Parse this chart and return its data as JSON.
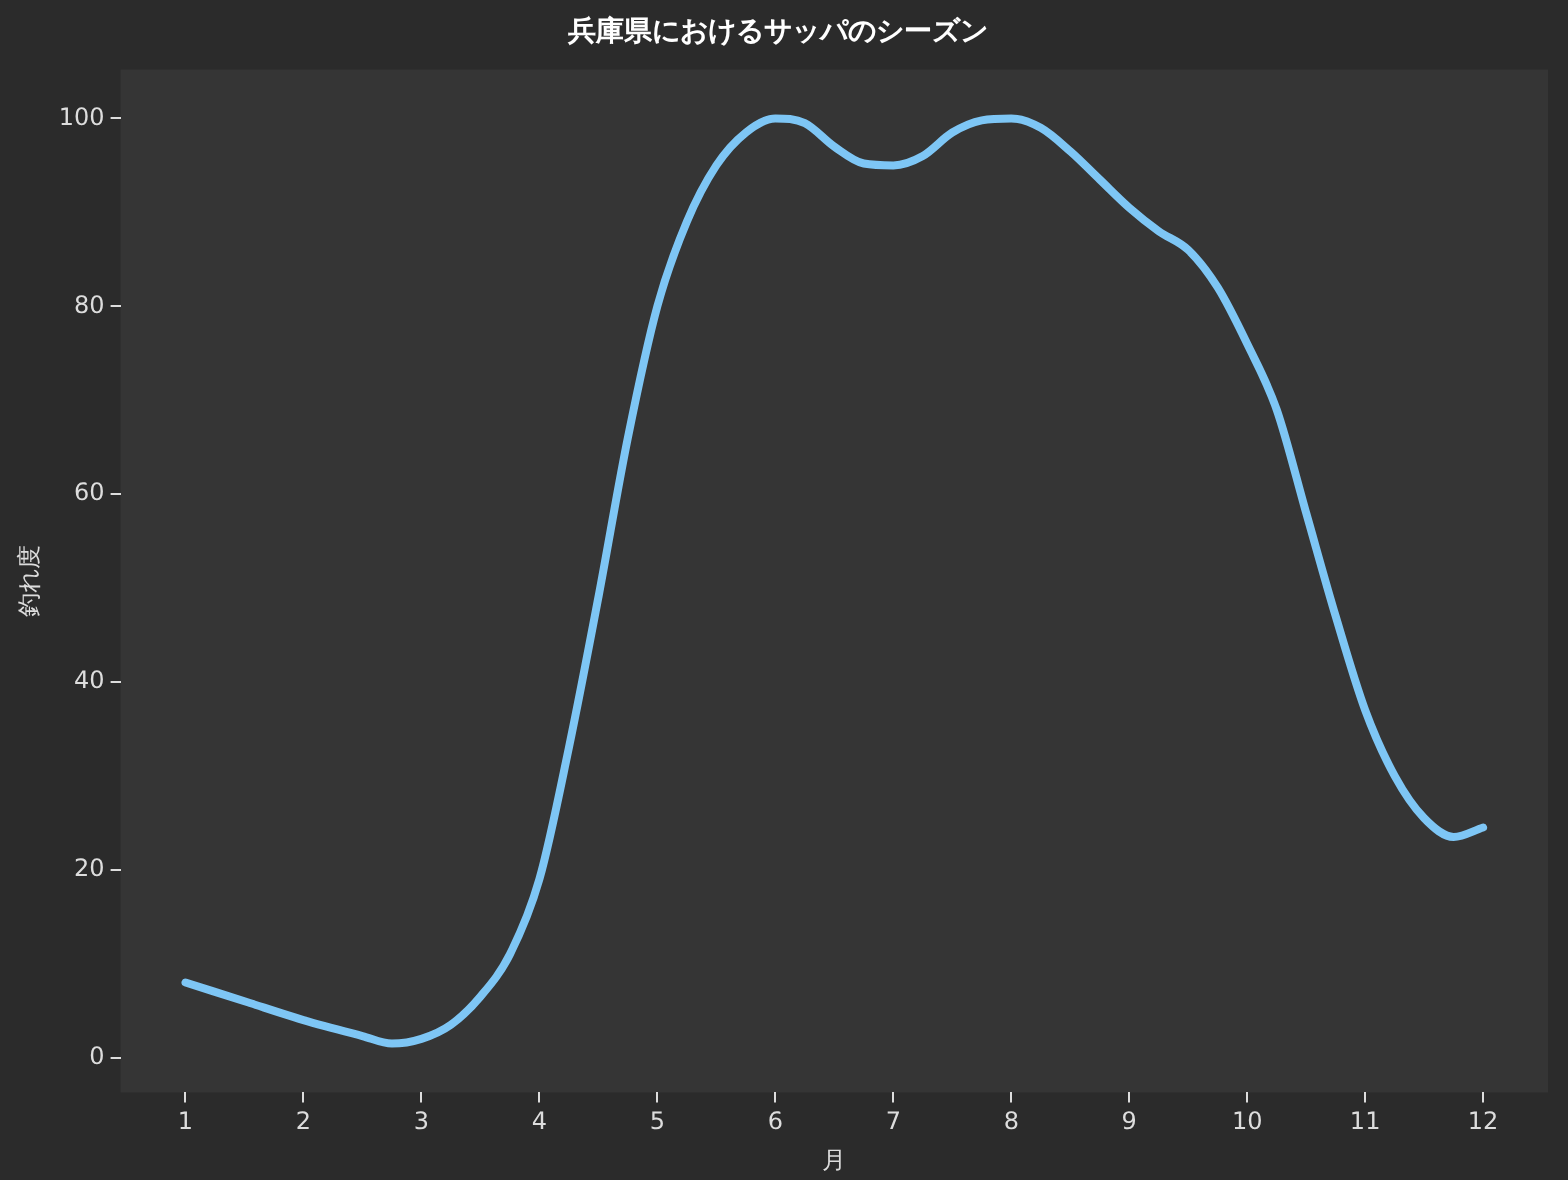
{
  "chart_data": {
    "type": "line",
    "title": "兵庫県におけるサッパのシーズン",
    "xlabel": "月",
    "ylabel": "釣れ度",
    "x": [
      1,
      1.5,
      2,
      2.5,
      2.75,
      3,
      3.25,
      3.5,
      3.75,
      4,
      4.25,
      4.5,
      4.75,
      5,
      5.25,
      5.5,
      5.75,
      6,
      6.25,
      6.5,
      6.75,
      7,
      7.25,
      7.5,
      7.75,
      8,
      8.25,
      8.5,
      8.75,
      9,
      9.25,
      9.5,
      9.75,
      10,
      10.25,
      10.5,
      10.75,
      11,
      11.25,
      11.5,
      11.75,
      12
    ],
    "series": [
      {
        "color": "#7ec6f5",
        "values": [
          8,
          6,
          4,
          2.3,
          1.5,
          2,
          3.5,
          6.5,
          11,
          19,
          33,
          49,
          66,
          80,
          89,
          95,
          98.5,
          100,
          99.5,
          97,
          95.2,
          95,
          96,
          98.5,
          99.8,
          100,
          99,
          96.5,
          93.5,
          90.5,
          88,
          86,
          82,
          76,
          69,
          58,
          47,
          37,
          30,
          25.5,
          23.5,
          24.5
        ]
      }
    ],
    "xlim": [
      0.45,
      12.55
    ],
    "xticks": [
      1,
      2,
      3,
      4,
      5,
      6,
      7,
      8,
      9,
      10,
      11,
      12
    ],
    "ylim": [
      -3.7,
      105.2
    ],
    "yticks": [
      0,
      20,
      40,
      60,
      80,
      100
    ],
    "grid": false,
    "legend": false,
    "marker": "none",
    "line_style": "solid"
  }
}
